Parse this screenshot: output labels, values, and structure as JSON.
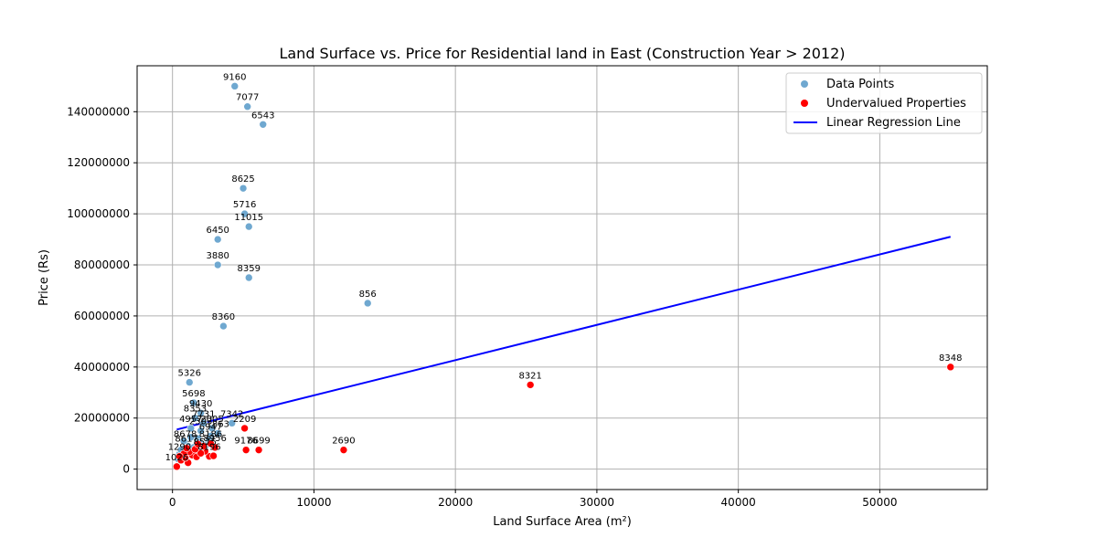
{
  "chart_data": {
    "type": "scatter",
    "title": "Land Surface vs. Price for Residential land in East (Construction Year > 2012)",
    "xlabel": "Land Surface Area (m²)",
    "ylabel": "Price (Rs)",
    "xlim": [
      -2500,
      57600
    ],
    "ylim": [
      -8000000,
      158000000
    ],
    "xticks": [
      0,
      10000,
      20000,
      30000,
      40000,
      50000
    ],
    "xtick_labels": [
      "0",
      "10000",
      "20000",
      "30000",
      "40000",
      "50000"
    ],
    "yticks": [
      0,
      20000000,
      40000000,
      60000000,
      80000000,
      100000000,
      120000000,
      140000000
    ],
    "ytick_labels": [
      "0",
      "20000000",
      "40000000",
      "60000000",
      "80000000",
      "100000000",
      "120000000",
      "140000000"
    ],
    "grid": true,
    "legend_position": "top-right",
    "legend": [
      "Data Points",
      "Undervalued Properties",
      "Linear Regression Line"
    ],
    "colors": {
      "data_points": "#6fa8d0",
      "undervalued": "#ff0000",
      "regression": "#0000ff"
    },
    "series": [
      {
        "name": "Data Points",
        "points": [
          {
            "x": 4400,
            "y": 150000000,
            "label": "9160"
          },
          {
            "x": 5300,
            "y": 142000000,
            "label": "7077"
          },
          {
            "x": 6400,
            "y": 135000000,
            "label": "6543"
          },
          {
            "x": 5000,
            "y": 110000000,
            "label": "8625"
          },
          {
            "x": 5100,
            "y": 100000000,
            "label": "5716"
          },
          {
            "x": 5400,
            "y": 95000000,
            "label": "11015"
          },
          {
            "x": 3200,
            "y": 90000000,
            "label": "6450"
          },
          {
            "x": 3200,
            "y": 80000000,
            "label": "3880"
          },
          {
            "x": 5400,
            "y": 75000000,
            "label": "8359"
          },
          {
            "x": 13800,
            "y": 65000000,
            "label": "856"
          },
          {
            "x": 3600,
            "y": 56000000,
            "label": "8360"
          },
          {
            "x": 1200,
            "y": 34000000,
            "label": "5326"
          },
          {
            "x": 1500,
            "y": 26000000,
            "label": "5698"
          },
          {
            "x": 2000,
            "y": 22000000,
            "label": "9430"
          },
          {
            "x": 1600,
            "y": 20000000,
            "label": "8353"
          },
          {
            "x": 2200,
            "y": 18000000,
            "label": "7731"
          },
          {
            "x": 4200,
            "y": 18000000,
            "label": "7342"
          },
          {
            "x": 1300,
            "y": 16000000,
            "label": "4957"
          },
          {
            "x": 2800,
            "y": 16000000,
            "label": "2005"
          },
          {
            "x": 2000,
            "y": 15000000,
            "label": "2303"
          },
          {
            "x": 3200,
            "y": 14000000,
            "label": "1863"
          },
          {
            "x": 2700,
            "y": 13000000,
            "label": "6947"
          },
          {
            "x": 900,
            "y": 10000000,
            "label": "8678"
          },
          {
            "x": 1800,
            "y": 12000000,
            "label": ""
          },
          {
            "x": 1100,
            "y": 9000000,
            "label": ""
          },
          {
            "x": 700,
            "y": 8000000,
            "label": ""
          },
          {
            "x": 1500,
            "y": 8500000,
            "label": ""
          },
          {
            "x": 2400,
            "y": 9500000,
            "label": ""
          },
          {
            "x": 500,
            "y": 6000000,
            "label": ""
          },
          {
            "x": 1000,
            "y": 5000000,
            "label": ""
          },
          {
            "x": 1700,
            "y": 6500000,
            "label": ""
          },
          {
            "x": 2100,
            "y": 7000000,
            "label": ""
          },
          {
            "x": 800,
            "y": 11000000,
            "label": ""
          },
          {
            "x": 1300,
            "y": 12500000,
            "label": ""
          },
          {
            "x": 400,
            "y": 4000000,
            "label": ""
          },
          {
            "x": 600,
            "y": 7500000,
            "label": ""
          },
          {
            "x": 1900,
            "y": 10500000,
            "label": ""
          },
          {
            "x": 2600,
            "y": 11500000,
            "label": ""
          }
        ]
      },
      {
        "name": "Undervalued Properties",
        "points": [
          {
            "x": 55000,
            "y": 40000000,
            "label": "8348"
          },
          {
            "x": 25300,
            "y": 33000000,
            "label": "8321"
          },
          {
            "x": 12100,
            "y": 7500000,
            "label": "2690"
          },
          {
            "x": 5200,
            "y": 7500000,
            "label": "9176"
          },
          {
            "x": 6100,
            "y": 7500000,
            "label": "8699"
          },
          {
            "x": 5100,
            "y": 16000000,
            "label": "2209"
          },
          {
            "x": 2600,
            "y": 5000000,
            "label": "8196"
          },
          {
            "x": 2900,
            "y": 5200000,
            "label": ""
          },
          {
            "x": 2300,
            "y": 7000000,
            "label": "8575"
          },
          {
            "x": 300,
            "y": 1000000,
            "label": "1026"
          },
          {
            "x": 1100,
            "y": 2500000,
            "label": ""
          },
          {
            "x": 600,
            "y": 3500000,
            "label": ""
          },
          {
            "x": 900,
            "y": 4500000,
            "label": ""
          },
          {
            "x": 1400,
            "y": 5500000,
            "label": ""
          },
          {
            "x": 1700,
            "y": 4800000,
            "label": ""
          },
          {
            "x": 2000,
            "y": 6200000,
            "label": ""
          },
          {
            "x": 1200,
            "y": 6800000,
            "label": ""
          },
          {
            "x": 800,
            "y": 6000000,
            "label": ""
          },
          {
            "x": 1600,
            "y": 7800000,
            "label": ""
          },
          {
            "x": 3000,
            "y": 8500000,
            "label": "8956"
          },
          {
            "x": 2200,
            "y": 9000000,
            "label": ""
          },
          {
            "x": 1000,
            "y": 8200000,
            "label": "8617"
          },
          {
            "x": 500,
            "y": 5000000,
            "label": "1290"
          },
          {
            "x": 1800,
            "y": 9800000,
            "label": ""
          },
          {
            "x": 2700,
            "y": 10000000,
            "label": "8186"
          }
        ]
      },
      {
        "name": "Linear Regression Line",
        "line": [
          {
            "x": 300,
            "y": 15500000
          },
          {
            "x": 55000,
            "y": 91000000
          }
        ]
      }
    ]
  }
}
